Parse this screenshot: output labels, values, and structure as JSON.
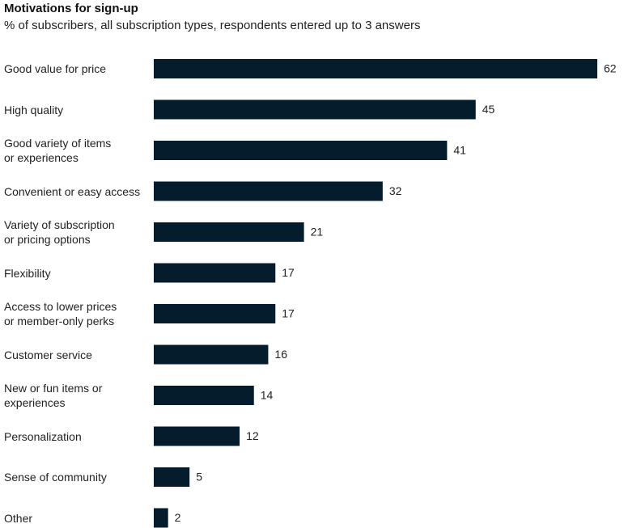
{
  "chart_data": {
    "type": "bar",
    "orientation": "horizontal",
    "title": "Motivations for sign-up",
    "subtitle": "% of subscribers, all subscription types, respondents entered up to 3 answers",
    "categories": [
      "Good value for price",
      "High quality",
      "Good variety of items\nor experiences",
      "Convenient or easy access",
      "Variety of subscription\nor pricing options",
      "Flexibility",
      "Access to lower prices\nor member-only perks",
      "Customer service",
      "New or fun items or\nexperiences",
      "Personalization",
      "Sense of community",
      "Other"
    ],
    "values": [
      62,
      45,
      41,
      32,
      21,
      17,
      17,
      16,
      14,
      12,
      5,
      2
    ],
    "color": "#051c2c"
  }
}
